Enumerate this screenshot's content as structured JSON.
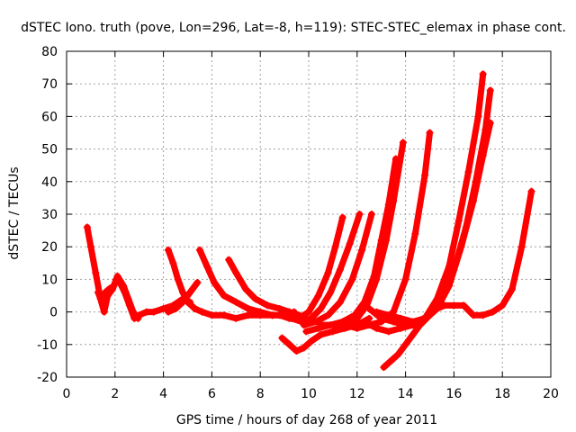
{
  "chart_data": {
    "type": "scatter",
    "title": "dSTEC Iono. truth (pove, Lon=296, Lat=-8, h=119): STEC-STEC_elemax in phase cont.",
    "xlabel": "GPS time / hours of day 268 of year 2011",
    "ylabel": "dSTEC  / TECUs",
    "xlim": [
      0,
      20
    ],
    "ylim": [
      -20,
      80
    ],
    "xticks": [
      0,
      2,
      4,
      6,
      8,
      10,
      12,
      14,
      16,
      18,
      20
    ],
    "yticks": [
      -20,
      -10,
      0,
      10,
      20,
      30,
      40,
      50,
      60,
      70,
      80
    ],
    "grid": true,
    "marker": "+",
    "color": "#ff0000",
    "series": [
      {
        "x": [
          0.85,
          1.0,
          1.2,
          1.4,
          1.55,
          1.7,
          1.9,
          2.05,
          2.2,
          2.4,
          2.6,
          2.8,
          3.0,
          3.3,
          3.6,
          4.0,
          4.4,
          4.8,
          5.1
        ],
        "y": [
          26,
          20,
          12,
          4,
          0,
          5,
          7,
          10,
          9,
          6,
          2,
          -2,
          -1,
          0,
          0,
          1,
          2,
          4,
          3
        ]
      },
      {
        "x": [
          1.3,
          1.45,
          1.6,
          1.75,
          1.95,
          2.1,
          2.35,
          2.55,
          2.75,
          2.95
        ],
        "y": [
          6,
          3,
          6,
          7,
          8,
          11,
          8,
          4,
          0,
          -2
        ]
      },
      {
        "x": [
          4.2,
          4.4,
          4.6,
          4.8,
          5.0,
          5.3,
          5.6,
          6.0,
          6.5,
          7.0,
          7.5,
          8.0,
          8.5,
          9.0,
          9.2
        ],
        "y": [
          19,
          15,
          10,
          6,
          3,
          1,
          0,
          -1,
          -1,
          -2,
          -1,
          -1,
          -1,
          -1,
          0
        ]
      },
      {
        "x": [
          4.2,
          4.5,
          4.8,
          5.1,
          5.4
        ],
        "y": [
          0,
          1,
          3,
          6,
          9
        ]
      },
      {
        "x": [
          5.5,
          5.8,
          6.1,
          6.5,
          7.0,
          7.5,
          8.0,
          8.5,
          9.0,
          9.4
        ],
        "y": [
          19,
          14,
          9,
          5,
          3,
          1,
          0,
          -1,
          -1,
          0
        ]
      },
      {
        "x": [
          6.7,
          7.0,
          7.4,
          7.8,
          8.3,
          8.8,
          9.2,
          9.6
        ],
        "y": [
          16,
          12,
          7,
          4,
          2,
          1,
          0,
          -1
        ]
      },
      {
        "x": [
          8.8,
          9.2,
          9.6,
          10.0,
          10.4,
          10.8,
          11.1,
          11.4
        ],
        "y": [
          -1,
          -2,
          -2,
          0,
          5,
          12,
          20,
          29
        ]
      },
      {
        "x": [
          9.3,
          9.7,
          10.1,
          10.5,
          10.9,
          11.3,
          11.7,
          12.1
        ],
        "y": [
          -2,
          -3,
          -2,
          1,
          6,
          13,
          21,
          30
        ]
      },
      {
        "x": [
          9.8,
          10.3,
          10.8,
          11.3,
          11.8,
          12.2,
          12.6
        ],
        "y": [
          -4,
          -3,
          -1,
          3,
          10,
          19,
          30
        ]
      },
      {
        "x": [
          9.9,
          10.4,
          10.9,
          11.4,
          11.9,
          12.3,
          12.7,
          13.0,
          13.3,
          13.6
        ],
        "y": [
          -6,
          -5,
          -4,
          -3,
          -1,
          3,
          11,
          22,
          33,
          47
        ]
      },
      {
        "x": [
          10.5,
          11.0,
          11.5,
          12.0,
          12.4,
          12.8,
          13.2,
          13.5,
          13.9
        ],
        "y": [
          -4,
          -4,
          -4,
          -2,
          2,
          10,
          22,
          34,
          52
        ]
      },
      {
        "x": [
          11.0,
          11.5,
          12.0,
          12.5,
          13.0,
          13.5,
          14.0,
          14.4,
          14.8,
          15.0
        ],
        "y": [
          -4,
          -4,
          -5,
          -4,
          -3,
          0,
          10,
          24,
          42,
          55
        ]
      },
      {
        "x": [
          8.9,
          9.2,
          9.5,
          9.8,
          10.1,
          10.5,
          11.0,
          11.5,
          12.0,
          12.5
        ],
        "y": [
          -8,
          -10,
          -12,
          -11,
          -9,
          -7,
          -6,
          -5,
          -4,
          -2
        ]
      },
      {
        "x": [
          12.3,
          12.8,
          13.3,
          13.8,
          14.3,
          14.8,
          15.3,
          15.8,
          16.2,
          16.6,
          17.0,
          17.2
        ],
        "y": [
          -3,
          -5,
          -6,
          -5,
          -4,
          -2,
          4,
          14,
          28,
          43,
          60,
          73
        ]
      },
      {
        "x": [
          12.5,
          13.0,
          13.5,
          14.0,
          14.5,
          15.0,
          15.5,
          16.0,
          16.5,
          16.9,
          17.3,
          17.5
        ],
        "y": [
          1,
          -2,
          -3,
          -4,
          -3,
          -1,
          4,
          13,
          26,
          40,
          56,
          68
        ]
      },
      {
        "x": [
          12.8,
          13.3,
          13.8,
          14.3,
          14.8,
          15.3,
          15.8,
          16.3,
          16.8,
          17.2,
          17.5
        ],
        "y": [
          0,
          -1,
          -2,
          -3,
          -2,
          1,
          8,
          20,
          34,
          48,
          58
        ]
      },
      {
        "x": [
          13.1,
          13.4,
          13.7,
          14.0,
          14.3,
          14.6,
          15.0,
          15.3,
          15.6,
          16.0,
          16.4,
          16.8,
          17.2,
          17.6,
          18.0,
          18.4,
          18.8,
          19.2
        ],
        "y": [
          -17,
          -15,
          -13,
          -10,
          -7,
          -4,
          -1,
          1,
          2,
          2,
          2,
          -1,
          -1,
          0,
          2,
          7,
          20,
          37
        ]
      }
    ]
  }
}
